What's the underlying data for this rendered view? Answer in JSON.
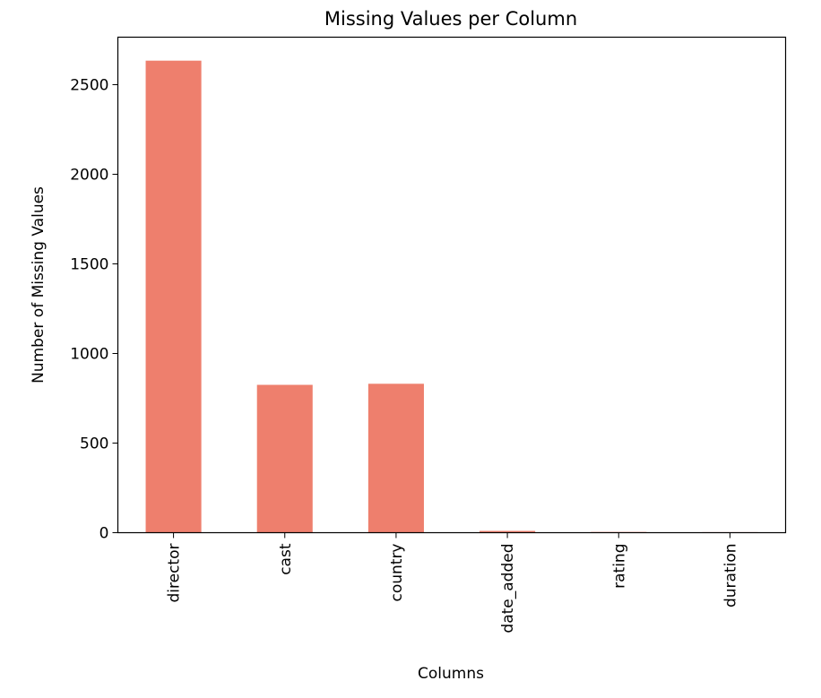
{
  "chart_data": {
    "type": "bar",
    "title": "Missing Values per Column",
    "xlabel": "Columns",
    "ylabel": "Number of Missing Values",
    "categories": [
      "director",
      "cast",
      "country",
      "date_added",
      "rating",
      "duration"
    ],
    "values": [
      2634,
      825,
      831,
      10,
      4,
      3
    ],
    "ylim": [
      0,
      2765
    ],
    "yticks": [
      0,
      500,
      1000,
      1500,
      2000,
      2500
    ],
    "bar_color": "#ee7f6d",
    "grid": false,
    "legend": "none"
  }
}
